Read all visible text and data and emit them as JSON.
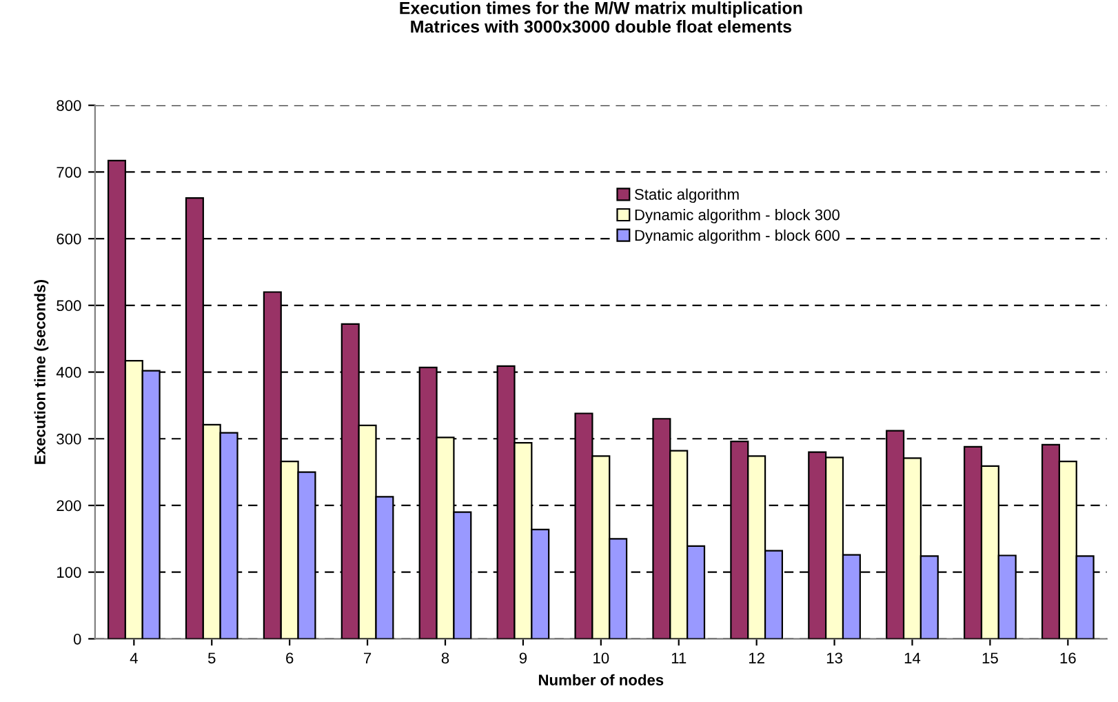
{
  "chart_data": {
    "type": "bar",
    "title": "Execution times for the M/W matrix multiplication\nMatrices with 3000x3000 double float elements",
    "xlabel": "Number of nodes",
    "ylabel": "Execution time (seconds)",
    "categories": [
      "4",
      "5",
      "6",
      "7",
      "8",
      "9",
      "10",
      "11",
      "12",
      "13",
      "14",
      "15",
      "16"
    ],
    "series": [
      {
        "name": "Static algorithm",
        "color": "#993366",
        "values": [
          717,
          661,
          520,
          472,
          407,
          409,
          338,
          330,
          296,
          280,
          312,
          288,
          291
        ]
      },
      {
        "name": "Dynamic algorithm - block 300",
        "color": "#ffffcc",
        "values": [
          417,
          321,
          266,
          320,
          302,
          294,
          274,
          282,
          274,
          272,
          271,
          259,
          266
        ]
      },
      {
        "name": "Dynamic algorithm - block 600",
        "color": "#9999ff",
        "values": [
          402,
          309,
          250,
          213,
          190,
          164,
          150,
          139,
          132,
          126,
          124,
          125,
          124
        ]
      }
    ],
    "ylim": [
      0,
      800
    ],
    "yticks": [
      0,
      100,
      200,
      300,
      400,
      500,
      600,
      700,
      800
    ],
    "grid": "y",
    "legend": "top right"
  }
}
